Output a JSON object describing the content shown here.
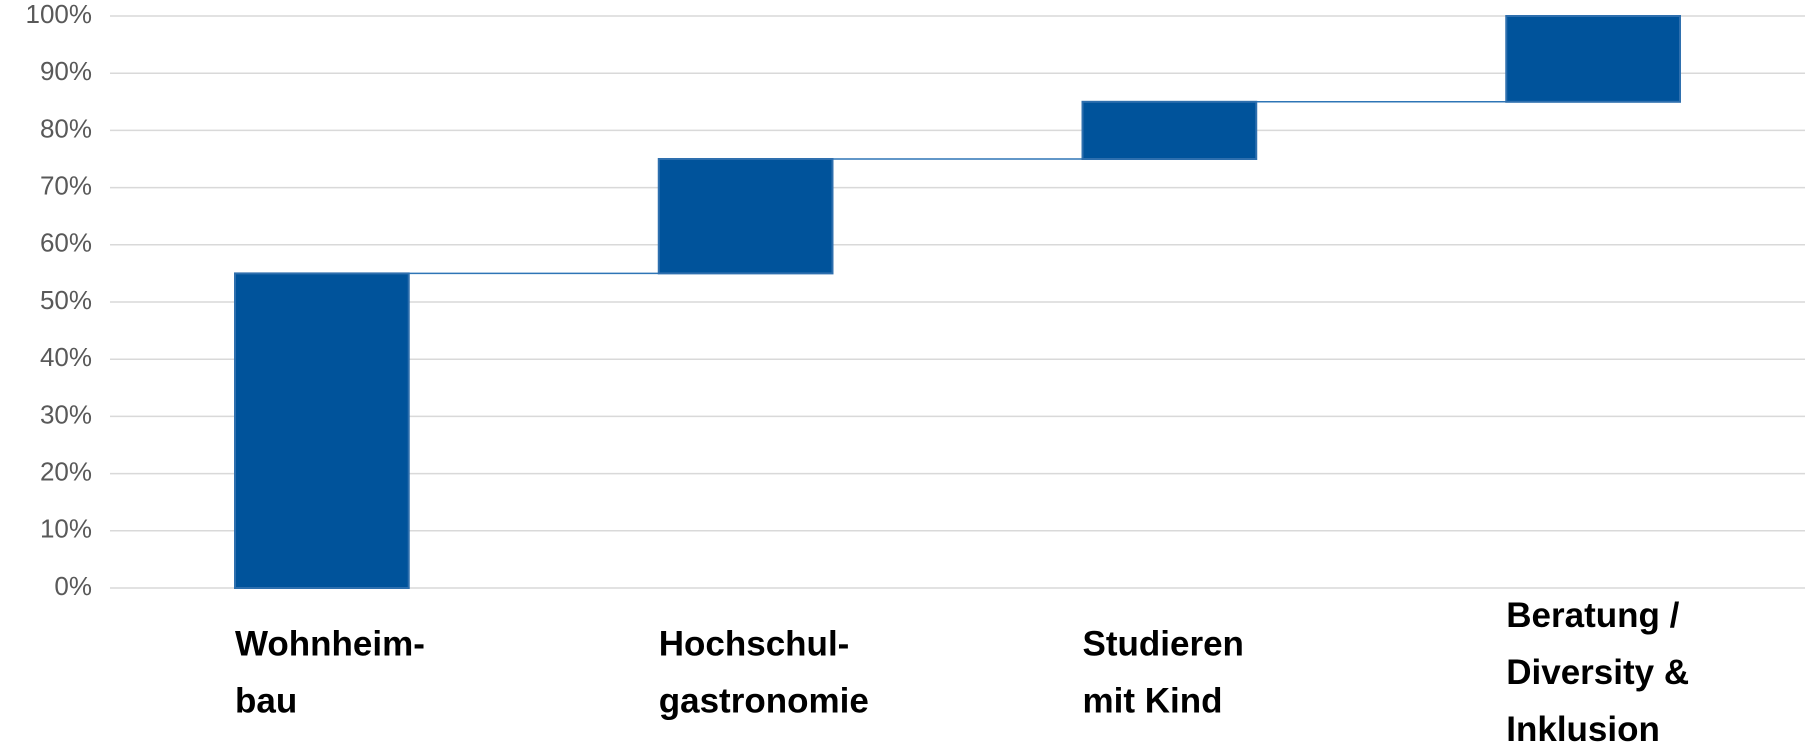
{
  "chart_data": {
    "type": "waterfall",
    "categories": [
      [
        "Wohnheim-",
        "bau"
      ],
      [
        "Hochschul-",
        "gastronomie"
      ],
      [
        "Studieren",
        "mit Kind"
      ],
      [
        "Beratung /",
        "Diversity &",
        "Inklusion"
      ]
    ],
    "values": [
      55,
      20,
      10,
      15
    ],
    "color": "#00539b",
    "ylim": [
      0,
      100
    ],
    "yticks": [
      {
        "value": 0,
        "label": "0%"
      },
      {
        "value": 10,
        "label": "10%"
      },
      {
        "value": 20,
        "label": "20%"
      },
      {
        "value": 30,
        "label": "30%"
      },
      {
        "value": 40,
        "label": "40%"
      },
      {
        "value": 50,
        "label": "50%"
      },
      {
        "value": 60,
        "label": "60%"
      },
      {
        "value": 70,
        "label": "70%"
      },
      {
        "value": 80,
        "label": "80%"
      },
      {
        "value": 90,
        "label": "90%"
      },
      {
        "value": 100,
        "label": "100%"
      }
    ],
    "grid": true
  }
}
